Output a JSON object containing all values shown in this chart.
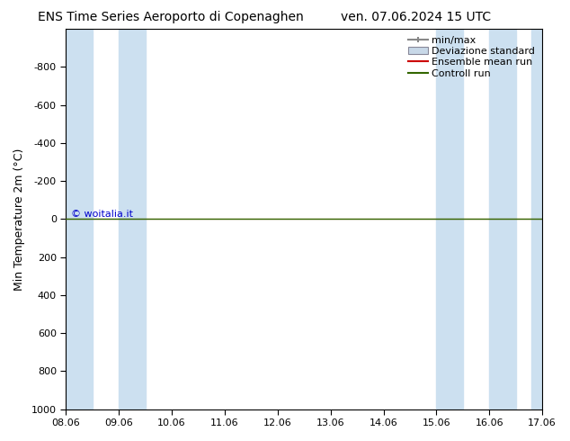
{
  "title_left": "ENS Time Series Aeroporto di Copenaghen",
  "title_right": "ven. 07.06.2024 15 UTC",
  "ylabel": "Min Temperature 2m (°C)",
  "ylim_top": -1000,
  "ylim_bottom": 1000,
  "yticks": [
    -800,
    -600,
    -400,
    -200,
    0,
    200,
    400,
    600,
    800,
    1000
  ],
  "x_tick_positions": [
    0,
    1,
    2,
    3,
    4,
    5,
    6,
    7,
    8,
    9
  ],
  "x_tick_labels": [
    "08.06",
    "09.06",
    "10.06",
    "11.06",
    "12.06",
    "13.06",
    "14.06",
    "15.06",
    "16.06",
    "17.06"
  ],
  "x_start": 0,
  "x_end": 9,
  "shaded_bands": [
    [
      0.0,
      0.5
    ],
    [
      1.0,
      1.5
    ],
    [
      7.0,
      7.5
    ],
    [
      8.0,
      8.5
    ],
    [
      8.8,
      9.0
    ]
  ],
  "shaded_color": "#cce0f0",
  "green_line_y": 0,
  "green_line_color": "#336600",
  "red_line_color": "#cc0000",
  "copyright_text": "© woitalia.it",
  "copyright_color": "#0000cc",
  "legend_labels": [
    "min/max",
    "Deviazione standard",
    "Ensemble mean run",
    "Controll run"
  ],
  "minmax_color": "#888888",
  "devstd_color": "#aaaacc",
  "background_color": "#ffffff",
  "plot_bg_color": "#ffffff",
  "title_fontsize": 10,
  "axis_fontsize": 8,
  "legend_fontsize": 8
}
